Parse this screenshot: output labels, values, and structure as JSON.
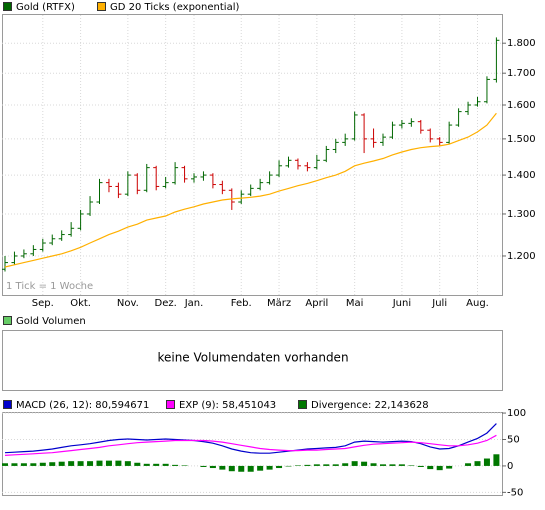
{
  "chart_data": [
    {
      "type": "ohlc",
      "annotation": "1 Tick = 1 Woche",
      "categories": [
        null,
        null,
        null,
        null,
        "Sep.",
        null,
        null,
        null,
        "Okt.",
        null,
        null,
        null,
        null,
        "Nov.",
        null,
        null,
        null,
        "Dez.",
        null,
        null,
        "Jan.",
        null,
        null,
        null,
        null,
        "Feb.",
        null,
        null,
        null,
        "März",
        null,
        null,
        null,
        "April",
        null,
        null,
        null,
        "Mai",
        null,
        null,
        null,
        null,
        "Juni",
        null,
        null,
        null,
        "Juli",
        null,
        null,
        null,
        "Aug.",
        null,
        null
      ],
      "series": [
        {
          "name": "Gold (RTFX)",
          "color": "#006600",
          "down_color": "#cc0000",
          "open": [
            1170,
            1185,
            1200,
            1205,
            1215,
            1230,
            1240,
            1250,
            1265,
            1300,
            1330,
            1380,
            1370,
            1350,
            1400,
            1360,
            1420,
            1370,
            1380,
            1420,
            1390,
            1395,
            1400,
            1375,
            1360,
            1330,
            1350,
            1365,
            1380,
            1400,
            1425,
            1440,
            1425,
            1420,
            1440,
            1470,
            1490,
            1500,
            1570,
            1500,
            1490,
            1505,
            1540,
            1545,
            1550,
            1525,
            1500,
            1490,
            1540,
            1580,
            1600,
            1610,
            1680
          ],
          "high": [
            1200,
            1210,
            1215,
            1225,
            1240,
            1250,
            1260,
            1280,
            1310,
            1345,
            1390,
            1390,
            1380,
            1410,
            1405,
            1430,
            1425,
            1395,
            1435,
            1425,
            1405,
            1410,
            1405,
            1385,
            1365,
            1360,
            1375,
            1390,
            1410,
            1440,
            1450,
            1445,
            1435,
            1455,
            1480,
            1500,
            1515,
            1580,
            1575,
            1530,
            1515,
            1550,
            1555,
            1560,
            1555,
            1530,
            1505,
            1550,
            1590,
            1610,
            1625,
            1690,
            1820
          ],
          "low": [
            1165,
            1180,
            1195,
            1200,
            1210,
            1225,
            1235,
            1245,
            1260,
            1295,
            1325,
            1355,
            1340,
            1345,
            1350,
            1355,
            1360,
            1365,
            1375,
            1380,
            1380,
            1385,
            1365,
            1350,
            1310,
            1325,
            1345,
            1360,
            1375,
            1395,
            1420,
            1415,
            1410,
            1415,
            1435,
            1460,
            1480,
            1495,
            1460,
            1475,
            1480,
            1500,
            1530,
            1535,
            1515,
            1490,
            1480,
            1485,
            1535,
            1570,
            1595,
            1605,
            1670
          ],
          "close": [
            1185,
            1200,
            1205,
            1215,
            1230,
            1240,
            1250,
            1265,
            1300,
            1330,
            1380,
            1370,
            1350,
            1400,
            1360,
            1420,
            1370,
            1380,
            1420,
            1390,
            1395,
            1400,
            1375,
            1360,
            1330,
            1350,
            1365,
            1380,
            1400,
            1425,
            1440,
            1425,
            1420,
            1440,
            1470,
            1490,
            1500,
            1570,
            1500,
            1490,
            1505,
            1540,
            1545,
            1550,
            1525,
            1500,
            1490,
            1540,
            1580,
            1600,
            1610,
            1680,
            1810
          ]
        },
        {
          "name": "GD 20 Ticks (exponential)",
          "color": "#ffb000",
          "values": [
            1175,
            1180,
            1185,
            1190,
            1195,
            1200,
            1205,
            1212,
            1220,
            1230,
            1240,
            1250,
            1258,
            1268,
            1275,
            1285,
            1290,
            1295,
            1305,
            1312,
            1318,
            1325,
            1330,
            1335,
            1338,
            1340,
            1342,
            1345,
            1350,
            1358,
            1365,
            1372,
            1378,
            1385,
            1393,
            1400,
            1410,
            1425,
            1432,
            1438,
            1445,
            1455,
            1463,
            1470,
            1475,
            1478,
            1480,
            1485,
            1495,
            1505,
            1520,
            1540,
            1575
          ]
        }
      ],
      "log_scale": true,
      "ylim": [
        1114,
        1903
      ],
      "yticks": [
        {
          "value": 1200,
          "label": "1.200"
        },
        {
          "value": 1300,
          "label": "1.300"
        },
        {
          "value": 1400,
          "label": "1.400"
        },
        {
          "value": 1500,
          "label": "1.500"
        },
        {
          "value": 1600,
          "label": "1.600"
        },
        {
          "value": 1700,
          "label": "1.700"
        },
        {
          "value": 1800,
          "label": "1.800"
        }
      ],
      "grid": true
    },
    {
      "type": "volume",
      "series": [
        {
          "name": "Gold Volumen",
          "color": "#66cc66"
        }
      ],
      "message": "keine Volumendaten vorhanden"
    },
    {
      "type": "macd",
      "series": [
        {
          "name": "MACD (26, 12): 80,594671",
          "color": "#0000cc",
          "kind": "line",
          "values": [
            25,
            26,
            27,
            28,
            30,
            32,
            35,
            38,
            40,
            42,
            45,
            48,
            50,
            51,
            50,
            49,
            50,
            51,
            50,
            49,
            48,
            46,
            43,
            38,
            32,
            28,
            25,
            24,
            24,
            26,
            28,
            30,
            32,
            33,
            34,
            35,
            38,
            45,
            47,
            46,
            45,
            46,
            47,
            46,
            42,
            36,
            32,
            33,
            38,
            45,
            52,
            62,
            80
          ]
        },
        {
          "name": "EXP (9): 58,451043",
          "color": "#ff00ff",
          "kind": "line",
          "values": [
            20,
            21,
            22,
            23,
            24,
            25,
            27,
            29,
            31,
            33,
            35,
            38,
            40,
            42,
            44,
            45,
            46,
            47,
            48,
            48,
            48,
            48,
            47,
            45,
            42,
            39,
            36,
            33,
            31,
            30,
            29,
            29,
            30,
            30,
            31,
            32,
            33,
            36,
            39,
            41,
            42,
            43,
            44,
            45,
            44,
            42,
            40,
            38,
            38,
            40,
            43,
            48,
            58
          ]
        },
        {
          "name": "Divergence: 22,143628",
          "color": "#007700",
          "kind": "bar",
          "values": [
            5,
            5,
            5,
            5,
            6,
            7,
            8,
            9,
            9,
            9,
            10,
            10,
            10,
            9,
            6,
            4,
            4,
            4,
            2,
            1,
            0,
            -2,
            -4,
            -7,
            -10,
            -11,
            -11,
            -9,
            -7,
            -4,
            -1,
            1,
            2,
            3,
            3,
            3,
            5,
            9,
            8,
            5,
            3,
            3,
            3,
            1,
            -2,
            -6,
            -8,
            -5,
            0,
            5,
            9,
            14,
            22
          ]
        }
      ],
      "ylim": [
        -55,
        102
      ],
      "yticks": [
        -50,
        0,
        50,
        100
      ],
      "grid": true
    }
  ]
}
